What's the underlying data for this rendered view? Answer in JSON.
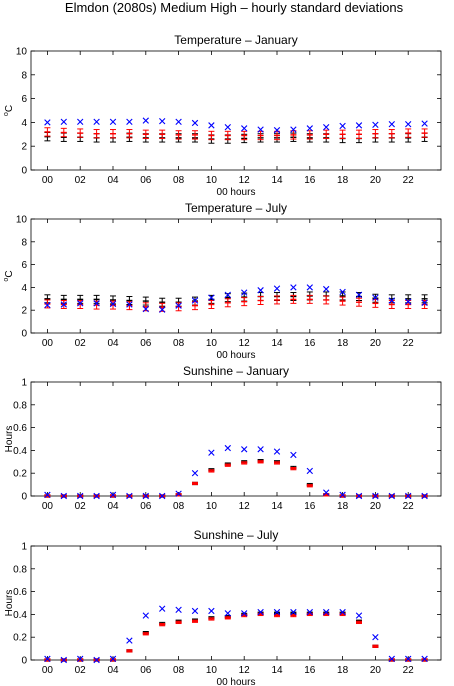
{
  "figure_title": "Elmdon (2080s) Medium High – hourly standard deviations",
  "colors": {
    "series_a": "#000000",
    "series_b": "#ff0000",
    "series_c": "#0000ff"
  },
  "chart_data": [
    {
      "type": "scatter",
      "title": "Temperature – January",
      "xlabel": "00 hours",
      "ylabel": "°C",
      "ylabel_base": "C",
      "ylabel_sup": "o",
      "xlim": [
        -1,
        24
      ],
      "ylim": [
        0,
        10
      ],
      "xticks": [
        0,
        2,
        4,
        6,
        8,
        10,
        12,
        14,
        16,
        18,
        20,
        22
      ],
      "xtick_labels": [
        "00",
        "02",
        "04",
        "06",
        "08",
        "10",
        "12",
        "14",
        "16",
        "18",
        "20",
        "22"
      ],
      "yticks": [
        0,
        2,
        4,
        6,
        8,
        10
      ],
      "ytick_labels": [
        "0",
        "2",
        "4",
        "6",
        "8",
        "10"
      ],
      "x": [
        0,
        1,
        2,
        3,
        4,
        5,
        6,
        7,
        8,
        9,
        10,
        11,
        12,
        13,
        14,
        15,
        16,
        17,
        18,
        19,
        20,
        21,
        22,
        23
      ],
      "series": [
        {
          "marker": "errorbar",
          "color": "#000000",
          "values": [
            2.8,
            2.75,
            2.75,
            2.7,
            2.7,
            2.75,
            2.7,
            2.7,
            2.7,
            2.7,
            2.6,
            2.6,
            2.65,
            2.7,
            2.7,
            2.75,
            2.7,
            2.7,
            2.65,
            2.65,
            2.7,
            2.7,
            2.7,
            2.75
          ],
          "error": 0.35
        },
        {
          "marker": "errorbar",
          "color": "#ff0000",
          "values": [
            3.2,
            3.15,
            3.1,
            3.05,
            3.05,
            3.05,
            3.0,
            3.0,
            2.95,
            2.95,
            2.9,
            2.9,
            2.9,
            2.9,
            2.9,
            2.95,
            2.95,
            3.0,
            3.0,
            3.0,
            3.05,
            3.05,
            3.1,
            3.1
          ],
          "error": 0.35
        },
        {
          "marker": "x",
          "color": "#0000ff",
          "values": [
            4.0,
            4.05,
            4.05,
            4.05,
            4.05,
            4.05,
            4.15,
            4.1,
            4.05,
            3.95,
            3.75,
            3.6,
            3.5,
            3.4,
            3.35,
            3.4,
            3.5,
            3.6,
            3.7,
            3.75,
            3.8,
            3.85,
            3.85,
            3.9
          ]
        }
      ]
    },
    {
      "type": "scatter",
      "title": "Temperature – July",
      "xlabel": "00 hours",
      "ylabel": "°C",
      "ylabel_base": "C",
      "ylabel_sup": "o",
      "xlim": [
        -1,
        24
      ],
      "ylim": [
        0,
        10
      ],
      "xticks": [
        0,
        2,
        4,
        6,
        8,
        10,
        12,
        14,
        16,
        18,
        20,
        22
      ],
      "xtick_labels": [
        "00",
        "02",
        "04",
        "06",
        "08",
        "10",
        "12",
        "14",
        "16",
        "18",
        "20",
        "22"
      ],
      "yticks": [
        0,
        2,
        4,
        6,
        8,
        10
      ],
      "ytick_labels": [
        "0",
        "2",
        "4",
        "6",
        "8",
        "10"
      ],
      "x": [
        0,
        1,
        2,
        3,
        4,
        5,
        6,
        7,
        8,
        9,
        10,
        11,
        12,
        13,
        14,
        15,
        16,
        17,
        18,
        19,
        20,
        21,
        22,
        23
      ],
      "series": [
        {
          "marker": "errorbar",
          "color": "#000000",
          "values": [
            3.0,
            2.95,
            2.95,
            2.95,
            2.9,
            2.85,
            2.8,
            2.7,
            2.7,
            2.8,
            2.95,
            3.1,
            3.15,
            3.2,
            3.2,
            3.2,
            3.25,
            3.25,
            3.25,
            3.2,
            3.05,
            3.0,
            3.0,
            3.0
          ],
          "error": 0.35
        },
        {
          "marker": "errorbar",
          "color": "#ff0000",
          "values": [
            2.55,
            2.5,
            2.5,
            2.45,
            2.45,
            2.4,
            2.3,
            2.25,
            2.3,
            2.4,
            2.5,
            2.65,
            2.75,
            2.85,
            2.9,
            2.95,
            2.95,
            2.9,
            2.8,
            2.7,
            2.6,
            2.5,
            2.5,
            2.5
          ],
          "error": 0.35
        },
        {
          "marker": "x",
          "color": "#0000ff",
          "values": [
            2.45,
            2.5,
            2.6,
            2.6,
            2.55,
            2.5,
            2.1,
            2.05,
            2.4,
            2.85,
            3.1,
            3.35,
            3.55,
            3.75,
            3.9,
            4.0,
            4.0,
            3.85,
            3.6,
            3.35,
            3.1,
            2.85,
            2.75,
            2.65
          ]
        }
      ]
    },
    {
      "type": "scatter",
      "title": "Sunshine – January",
      "xlabel": "",
      "ylabel": "Hours",
      "xlim": [
        -1,
        24
      ],
      "ylim": [
        0,
        1
      ],
      "xticks": [
        0,
        2,
        4,
        6,
        8,
        10,
        12,
        14,
        16,
        18,
        20,
        22
      ],
      "xtick_labels": [
        "00",
        "02",
        "04",
        "06",
        "08",
        "10",
        "12",
        "14",
        "16",
        "18",
        "20",
        "22"
      ],
      "yticks": [
        0,
        0.2,
        0.4,
        0.6,
        0.8,
        1
      ],
      "ytick_labels": [
        "0",
        "0.2",
        "0.4",
        "0.6",
        "0.8",
        "1"
      ],
      "x": [
        0,
        1,
        2,
        3,
        4,
        5,
        6,
        7,
        8,
        9,
        10,
        11,
        12,
        13,
        14,
        15,
        16,
        17,
        18,
        19,
        20,
        21,
        22,
        23
      ],
      "series": [
        {
          "marker": "errorbar",
          "color": "#000000",
          "values": [
            0,
            0,
            0,
            0,
            0,
            0,
            0,
            0,
            0.01,
            0.11,
            0.23,
            0.28,
            0.3,
            0.31,
            0.3,
            0.25,
            0.1,
            0.01,
            0,
            0,
            0,
            0,
            0,
            0
          ],
          "error": 0.01
        },
        {
          "marker": "errorbar",
          "color": "#ff0000",
          "values": [
            0,
            0,
            0,
            0,
            0,
            0,
            0,
            0,
            0.01,
            0.11,
            0.22,
            0.27,
            0.29,
            0.3,
            0.29,
            0.24,
            0.09,
            0.01,
            0,
            0,
            0,
            0,
            0,
            0
          ],
          "error": 0.01
        },
        {
          "marker": "x",
          "color": "#0000ff",
          "values": [
            0.01,
            0,
            0,
            0,
            0.01,
            0,
            0,
            0,
            0.02,
            0.2,
            0.38,
            0.42,
            0.41,
            0.41,
            0.39,
            0.36,
            0.22,
            0.03,
            0.01,
            0,
            0,
            0,
            0,
            0
          ]
        }
      ]
    },
    {
      "type": "scatter",
      "title": "Sunshine – July",
      "xlabel": "00 hours",
      "ylabel": "Hours",
      "xlim": [
        -1,
        24
      ],
      "ylim": [
        0,
        1
      ],
      "xticks": [
        0,
        2,
        4,
        6,
        8,
        10,
        12,
        14,
        16,
        18,
        20,
        22
      ],
      "xtick_labels": [
        "00",
        "02",
        "04",
        "06",
        "08",
        "10",
        "12",
        "14",
        "16",
        "18",
        "20",
        "22"
      ],
      "yticks": [
        0,
        0.2,
        0.4,
        0.6,
        0.8,
        1
      ],
      "ytick_labels": [
        "0",
        "0.2",
        "0.4",
        "0.6",
        "0.8",
        "1"
      ],
      "x": [
        0,
        1,
        2,
        3,
        4,
        5,
        6,
        7,
        8,
        9,
        10,
        11,
        12,
        13,
        14,
        15,
        16,
        17,
        18,
        19,
        20,
        21,
        22,
        23
      ],
      "series": [
        {
          "marker": "errorbar",
          "color": "#000000",
          "values": [
            0,
            0,
            0,
            0,
            0,
            0.08,
            0.24,
            0.32,
            0.34,
            0.35,
            0.37,
            0.38,
            0.4,
            0.41,
            0.41,
            0.41,
            0.41,
            0.41,
            0.41,
            0.34,
            0.12,
            0,
            0,
            0
          ],
          "error": 0.01
        },
        {
          "marker": "errorbar",
          "color": "#ff0000",
          "values": [
            0,
            0,
            0,
            0,
            0,
            0.08,
            0.23,
            0.31,
            0.33,
            0.34,
            0.36,
            0.37,
            0.39,
            0.4,
            0.39,
            0.39,
            0.4,
            0.4,
            0.4,
            0.33,
            0.12,
            0,
            0,
            0
          ],
          "error": 0.01
        },
        {
          "marker": "x",
          "color": "#0000ff",
          "values": [
            0.01,
            0,
            0.01,
            0,
            0.01,
            0.17,
            0.39,
            0.45,
            0.44,
            0.43,
            0.43,
            0.41,
            0.41,
            0.42,
            0.42,
            0.42,
            0.42,
            0.42,
            0.42,
            0.39,
            0.2,
            0.01,
            0.01,
            0.01
          ]
        }
      ]
    }
  ]
}
